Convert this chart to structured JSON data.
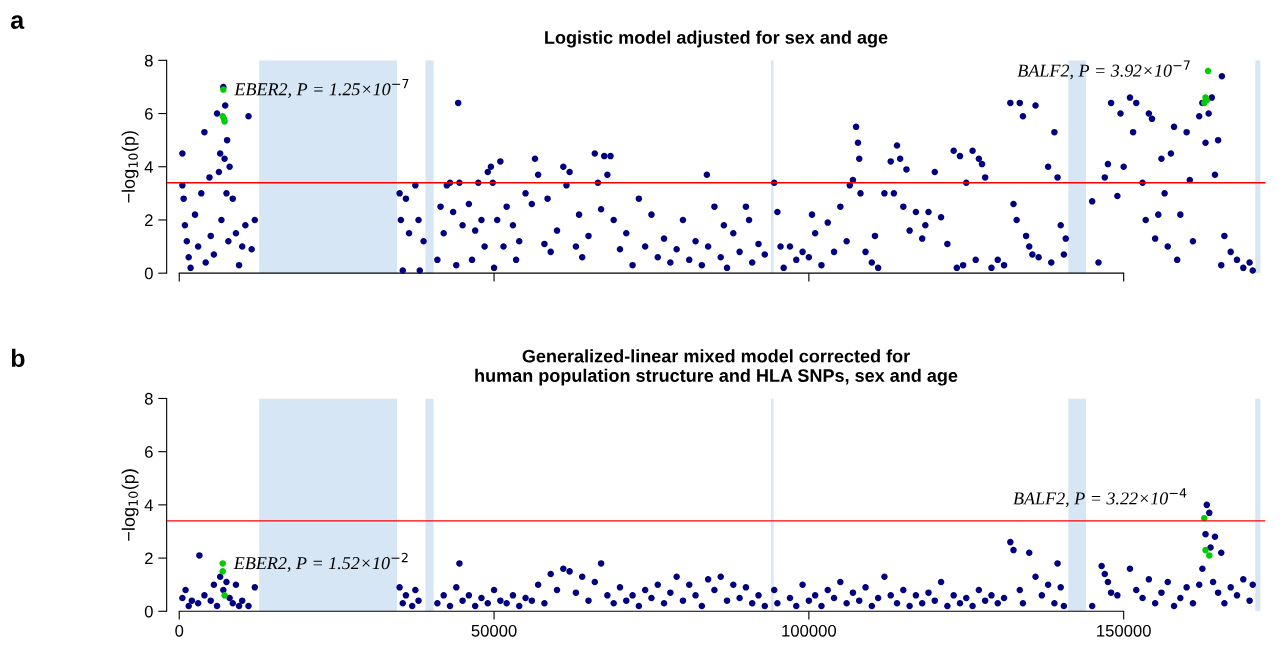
{
  "chart_data": [
    {
      "type": "scatter",
      "title": "Logistic model adjusted for sex and age",
      "ylabel": "−log$_{10}$(p)",
      "xlim": [
        -2000,
        172500
      ],
      "xticks": [
        0,
        50000,
        100000,
        150000
      ],
      "ylim": [
        0,
        8
      ],
      "yticks": [
        0,
        2,
        4,
        6,
        8
      ],
      "tick_labels": "y",
      "grid": false,
      "legend": false,
      "marker": "circle",
      "ref_lines": [
        {
          "axis": "y",
          "value": 3.4,
          "color": "#ff0000"
        }
      ],
      "bands": [
        {
          "axis": "x",
          "from": 12700,
          "to": 34600,
          "color": "#d6e6f4"
        },
        {
          "axis": "x",
          "from": 39100,
          "to": 40400,
          "color": "#d6e6f4"
        },
        {
          "axis": "x",
          "from": 94000,
          "to": 94400,
          "color": "#d6e6f4"
        },
        {
          "axis": "x",
          "from": 141200,
          "to": 144000,
          "color": "#d6e6f4"
        },
        {
          "axis": "x",
          "from": 170900,
          "to": 171700,
          "color": "#d6e6f4"
        }
      ],
      "annotations": [
        "a",
        {
          "text": "EBER2, P = 1.25×10$^{−7}$",
          "x": 7000,
          "y": 6.9
        },
        {
          "text": "BALF2, P = 3.92×10$^{−7}$",
          "x": 163400,
          "y": 7.6
        }
      ],
      "series": [
        {
          "color": "#000080",
          "x": [
            500,
            500,
            700,
            900,
            1200,
            1500,
            1800,
            2500,
            3000,
            3500,
            4000,
            4200,
            4800,
            5000,
            5500,
            6000,
            6300,
            6500,
            6700,
            7000,
            7200,
            7300,
            7500,
            7600,
            7800,
            8000,
            8500,
            9000,
            9500,
            10000,
            10500,
            11000,
            11500,
            12000,
            35000,
            35200,
            35500,
            36000,
            36500,
            37500,
            38000,
            38200,
            38800,
            41000,
            41500,
            42000,
            42500,
            43000,
            43500,
            44000,
            44300,
            44500,
            45000,
            46000,
            46500,
            47000,
            47500,
            48000,
            48500,
            49000,
            49500,
            49800,
            50000,
            50500,
            51000,
            51500,
            52000,
            53000,
            53500,
            54000,
            55000,
            56000,
            56500,
            57000,
            58000,
            58500,
            59000,
            60000,
            61000,
            61500,
            62000,
            63000,
            63500,
            64000,
            65000,
            66000,
            66500,
            67000,
            67500,
            68000,
            68500,
            69000,
            70000,
            71000,
            72000,
            73000,
            74000,
            75000,
            76000,
            77000,
            78000,
            79000,
            80000,
            81000,
            82000,
            83000,
            83800,
            84000,
            85000,
            86000,
            86500,
            87000,
            88000,
            89000,
            90000,
            90500,
            91000,
            92000,
            93000,
            94500,
            95000,
            95500,
            96000,
            97000,
            98000,
            99000,
            100000,
            100500,
            101000,
            102000,
            103000,
            104000,
            105000,
            106000,
            106500,
            107000,
            107500,
            107800,
            108000,
            108200,
            109000,
            110000,
            110500,
            111000,
            112000,
            113000,
            113500,
            114000,
            114500,
            115000,
            115500,
            116000,
            117000,
            118000,
            118500,
            119000,
            120000,
            121000,
            122000,
            123000,
            123500,
            124000,
            124500,
            125000,
            126000,
            126500,
            127000,
            127500,
            128000,
            129000,
            130000,
            131000,
            132000,
            132500,
            133000,
            133500,
            134000,
            134500,
            135000,
            135500,
            136000,
            136500,
            138000,
            138500,
            139000,
            139500,
            140000,
            140500,
            140800,
            145000,
            146000,
            147000,
            147500,
            148000,
            149000,
            149500,
            150000,
            151000,
            151500,
            152000,
            153000,
            153500,
            154000,
            154500,
            155000,
            155500,
            156000,
            156500,
            157000,
            157500,
            158000,
            158500,
            159000,
            160000,
            160500,
            161000,
            162000,
            162500,
            163000,
            163500,
            164000,
            165600,
            164500,
            165000,
            165500,
            166000,
            167000,
            168000,
            169000,
            170000,
            170500
          ],
          "values": [
            4.5,
            3.3,
            2.8,
            1.8,
            1.2,
            0.6,
            0.2,
            2.2,
            1.0,
            3.0,
            5.3,
            0.4,
            3.6,
            1.4,
            0.7,
            6.0,
            3.8,
            4.5,
            2.0,
            7.0,
            4.3,
            6.3,
            3.0,
            5.0,
            1.2,
            4.0,
            2.8,
            1.5,
            0.3,
            1.0,
            1.8,
            5.9,
            0.9,
            2.0,
            3.0,
            2.0,
            0.1,
            2.8,
            1.5,
            3.3,
            2.0,
            0.1,
            1.2,
            0.5,
            2.5,
            1.5,
            3.3,
            3.4,
            2.3,
            0.3,
            6.4,
            3.4,
            1.8,
            2.6,
            0.5,
            1.6,
            3.4,
            2.0,
            1.0,
            3.8,
            4.0,
            3.4,
            0.2,
            2.0,
            4.2,
            1.0,
            2.5,
            1.8,
            0.5,
            1.2,
            3.0,
            2.6,
            4.3,
            3.7,
            1.1,
            2.8,
            0.8,
            1.6,
            4.0,
            3.3,
            3.8,
            1.0,
            2.2,
            0.6,
            1.4,
            4.5,
            3.4,
            2.4,
            4.4,
            3.7,
            4.4,
            2.0,
            0.9,
            1.5,
            0.3,
            2.8,
            1.0,
            2.2,
            0.6,
            1.3,
            0.4,
            0.9,
            2.0,
            0.5,
            1.2,
            0.3,
            3.7,
            1.0,
            2.5,
            0.6,
            1.8,
            0.2,
            1.5,
            0.8,
            2.5,
            2.0,
            0.4,
            1.1,
            0.7,
            3.4,
            2.3,
            1.0,
            0.2,
            1.0,
            0.5,
            0.8,
            0.6,
            2.2,
            1.5,
            0.3,
            1.9,
            0.8,
            2.5,
            1.2,
            3.3,
            3.5,
            5.5,
            4.9,
            4.3,
            3.0,
            0.8,
            0.4,
            1.4,
            0.2,
            3.0,
            4.2,
            3.0,
            4.8,
            4.3,
            2.5,
            3.9,
            1.6,
            2.3,
            1.3,
            1.8,
            2.3,
            3.8,
            2.1,
            1.1,
            4.6,
            0.2,
            4.4,
            0.3,
            3.4,
            4.6,
            0.5,
            4.3,
            4.1,
            3.6,
            0.2,
            0.5,
            0.3,
            6.4,
            2.6,
            2.0,
            6.4,
            5.9,
            1.4,
            1.0,
            0.7,
            6.3,
            0.6,
            4.0,
            0.4,
            5.3,
            3.6,
            1.8,
            0.7,
            1.3,
            2.7,
            0.4,
            3.6,
            4.1,
            6.4,
            2.9,
            6.0,
            4.0,
            6.6,
            5.3,
            6.4,
            3.4,
            2.0,
            6.0,
            5.8,
            1.3,
            2.2,
            4.3,
            3.0,
            1.0,
            4.5,
            5.5,
            0.5,
            2.2,
            5.3,
            3.5,
            1.2,
            5.9,
            6.4,
            4.9,
            6.0,
            6.6,
            7.4,
            3.7,
            5.0,
            0.3,
            1.4,
            0.8,
            0.5,
            0.2,
            0.4,
            0.1
          ]
        },
        {
          "color": "#00cc00",
          "x": [
            7000,
            6900,
            7200,
            7100,
            163400,
            163000,
            162800,
            163200
          ],
          "values": [
            6.9,
            5.9,
            5.7,
            5.8,
            7.6,
            6.6,
            6.4,
            6.5
          ]
        }
      ]
    },
    {
      "type": "scatter",
      "title": "Generalized-linear mixed model corrected for\nhuman population structure and HLA SNPs, sex and age",
      "ylabel": "−log$_{10}$(p)",
      "xlim": [
        -2000,
        172500
      ],
      "xticks": [
        0,
        50000,
        100000,
        150000
      ],
      "ylim": [
        0,
        8
      ],
      "yticks": [
        0,
        2,
        4,
        6,
        8
      ],
      "grid": false,
      "legend": false,
      "marker": "circle",
      "ref_lines": [
        {
          "axis": "y",
          "value": 3.4,
          "color": "#ff0000"
        }
      ],
      "bands": [
        {
          "axis": "x",
          "from": 12700,
          "to": 34600,
          "color": "#d6e6f4"
        },
        {
          "axis": "x",
          "from": 39100,
          "to": 40400,
          "color": "#d6e6f4"
        },
        {
          "axis": "x",
          "from": 94000,
          "to": 94400,
          "color": "#d6e6f4"
        },
        {
          "axis": "x",
          "from": 141200,
          "to": 144000,
          "color": "#d6e6f4"
        },
        {
          "axis": "x",
          "from": 170900,
          "to": 171700,
          "color": "#d6e6f4"
        }
      ],
      "annotations": [
        "b",
        {
          "text": "EBER2, P = 1.52×10$^{−2}$",
          "x": 6900,
          "y": 1.8
        },
        {
          "text": "BALF2, P = 3.22×10$^{−4}$",
          "x": 162800,
          "y": 3.5
        }
      ],
      "series": [
        {
          "color": "#000080",
          "x": [
            500,
            1000,
            1500,
            2000,
            3000,
            3200,
            4000,
            5000,
            5500,
            6000,
            6500,
            7000,
            7500,
            8000,
            8500,
            9000,
            9500,
            10000,
            11000,
            12000,
            35000,
            35500,
            36000,
            37000,
            37500,
            38000,
            41000,
            42000,
            43000,
            44000,
            44500,
            45000,
            46000,
            47000,
            48000,
            49000,
            50000,
            51000,
            52000,
            53000,
            54000,
            55000,
            56000,
            57000,
            58000,
            59000,
            60000,
            61000,
            62000,
            63000,
            64000,
            65000,
            66000,
            67000,
            68000,
            69000,
            70000,
            71000,
            72000,
            73000,
            74000,
            75000,
            76000,
            77000,
            78000,
            79000,
            80000,
            81000,
            82000,
            83000,
            84000,
            85000,
            86000,
            87000,
            88000,
            89000,
            90000,
            91000,
            92000,
            93000,
            94500,
            95000,
            97000,
            98000,
            99000,
            100000,
            101000,
            102000,
            103000,
            104000,
            105000,
            106000,
            107000,
            108000,
            109000,
            110000,
            111000,
            112000,
            113000,
            114000,
            115000,
            116000,
            117000,
            118000,
            119000,
            120000,
            121000,
            122000,
            123000,
            124000,
            125000,
            126000,
            127000,
            128000,
            129000,
            130000,
            131000,
            132000,
            132500,
            133500,
            134000,
            135000,
            136000,
            137000,
            138000,
            139000,
            139500,
            140000,
            140500,
            145000,
            146500,
            147000,
            147500,
            148000,
            149000,
            151000,
            152000,
            153000,
            154000,
            155000,
            156000,
            157000,
            158000,
            159000,
            160000,
            161000,
            162000,
            162500,
            163200,
            163600,
            163000,
            163800,
            164500,
            164200,
            165000,
            165500,
            166000,
            167000,
            168000,
            169000,
            170000,
            170500
          ],
          "values": [
            0.5,
            0.8,
            0.2,
            0.4,
            0.3,
            2.1,
            0.6,
            0.4,
            1.0,
            0.2,
            1.3,
            0.8,
            1.1,
            0.5,
            0.3,
            1.0,
            0.2,
            0.4,
            0.2,
            0.9,
            0.9,
            0.3,
            0.6,
            0.2,
            0.8,
            0.4,
            0.3,
            0.6,
            0.2,
            0.9,
            1.8,
            0.4,
            0.6,
            0.2,
            0.5,
            0.3,
            0.8,
            0.4,
            0.3,
            0.6,
            0.2,
            0.5,
            0.4,
            1.0,
            0.3,
            1.4,
            0.8,
            1.6,
            1.5,
            0.7,
            1.3,
            0.4,
            1.1,
            1.8,
            0.6,
            0.3,
            0.9,
            0.4,
            0.6,
            0.2,
            0.8,
            0.5,
            1.0,
            0.3,
            0.7,
            1.3,
            0.4,
            1.0,
            0.6,
            0.2,
            1.2,
            0.8,
            1.3,
            0.4,
            1.0,
            0.5,
            0.9,
            0.3,
            0.6,
            0.2,
            0.8,
            0.3,
            0.5,
            0.2,
            1.0,
            0.4,
            0.6,
            0.2,
            0.8,
            0.5,
            1.1,
            0.3,
            0.7,
            0.4,
            0.9,
            0.2,
            0.5,
            1.3,
            0.6,
            0.3,
            0.8,
            0.2,
            0.6,
            0.3,
            0.7,
            0.4,
            1.1,
            0.2,
            0.6,
            0.3,
            0.5,
            0.2,
            0.8,
            0.4,
            0.6,
            0.3,
            0.5,
            2.6,
            2.3,
            0.8,
            0.3,
            2.2,
            1.3,
            0.6,
            1.0,
            0.3,
            1.8,
            0.9,
            0.2,
            0.2,
            1.7,
            1.4,
            1.1,
            0.7,
            0.6,
            1.6,
            0.8,
            0.5,
            1.2,
            0.3,
            0.7,
            1.1,
            0.2,
            0.5,
            0.9,
            0.3,
            1.0,
            1.6,
            4.0,
            3.7,
            2.9,
            2.4,
            2.8,
            1.1,
            0.7,
            2.2,
            0.3,
            0.9,
            0.6,
            1.2,
            0.4,
            1.0
          ]
        },
        {
          "color": "#00cc00",
          "x": [
            6900,
            6900,
            7200,
            162800,
            163000,
            163600
          ],
          "values": [
            1.8,
            1.5,
            0.6,
            3.5,
            2.3,
            2.1
          ]
        }
      ]
    }
  ]
}
